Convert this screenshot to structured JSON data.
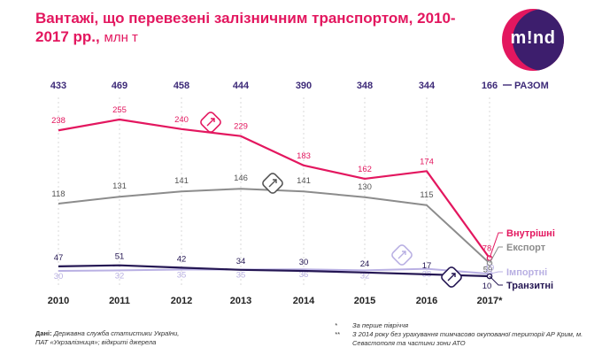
{
  "header": {
    "title": "Вантажі, що перевезені залізничним транспортом, 2010-2017 рр.,",
    "unit": "млн т",
    "logo_text": "m!nd"
  },
  "chart_data": {
    "type": "line",
    "title": "Вантажі, що перевезені залізничним транспортом, 2010-2017 рр., млн т",
    "categories": [
      "2010",
      "2011",
      "2012",
      "2013",
      "2014",
      "2015",
      "2016",
      "2017*"
    ],
    "totals_label": "РАЗОМ",
    "totals": [
      433,
      469,
      458,
      444,
      390,
      348,
      344,
      166
    ],
    "series": [
      {
        "name": "Внутрішні",
        "color": "#e3175f",
        "values": [
          238,
          255,
          240,
          229,
          183,
          162,
          174,
          78
        ]
      },
      {
        "name": "Експорт",
        "color": "#8c8c8c",
        "values": [
          118,
          131,
          141,
          146,
          141,
          130,
          115,
          59
        ]
      },
      {
        "name": "Імпортні",
        "color": "#b9b0e3",
        "values": [
          30,
          32,
          35,
          35,
          36,
          32,
          38,
          19
        ]
      },
      {
        "name": "Транзитні",
        "color": "#241653",
        "values": [
          47,
          51,
          42,
          34,
          30,
          24,
          17,
          10
        ]
      }
    ],
    "colors": {
      "accent": "#e3175f",
      "total": "#3d2a78",
      "grid": "#d0d0d0"
    }
  },
  "footer": {
    "source_label": "Дані:",
    "source_text": "Державна служба статистики України, ПАТ «Укрзалізниця»; відкриті джерела",
    "note1": "За перше півріччя",
    "note2": "З 2014 року без урахування тимчасово окупованої території АР Крим, м. Севастополя та частини зони АТО",
    "star1": "*",
    "star2": "**"
  }
}
